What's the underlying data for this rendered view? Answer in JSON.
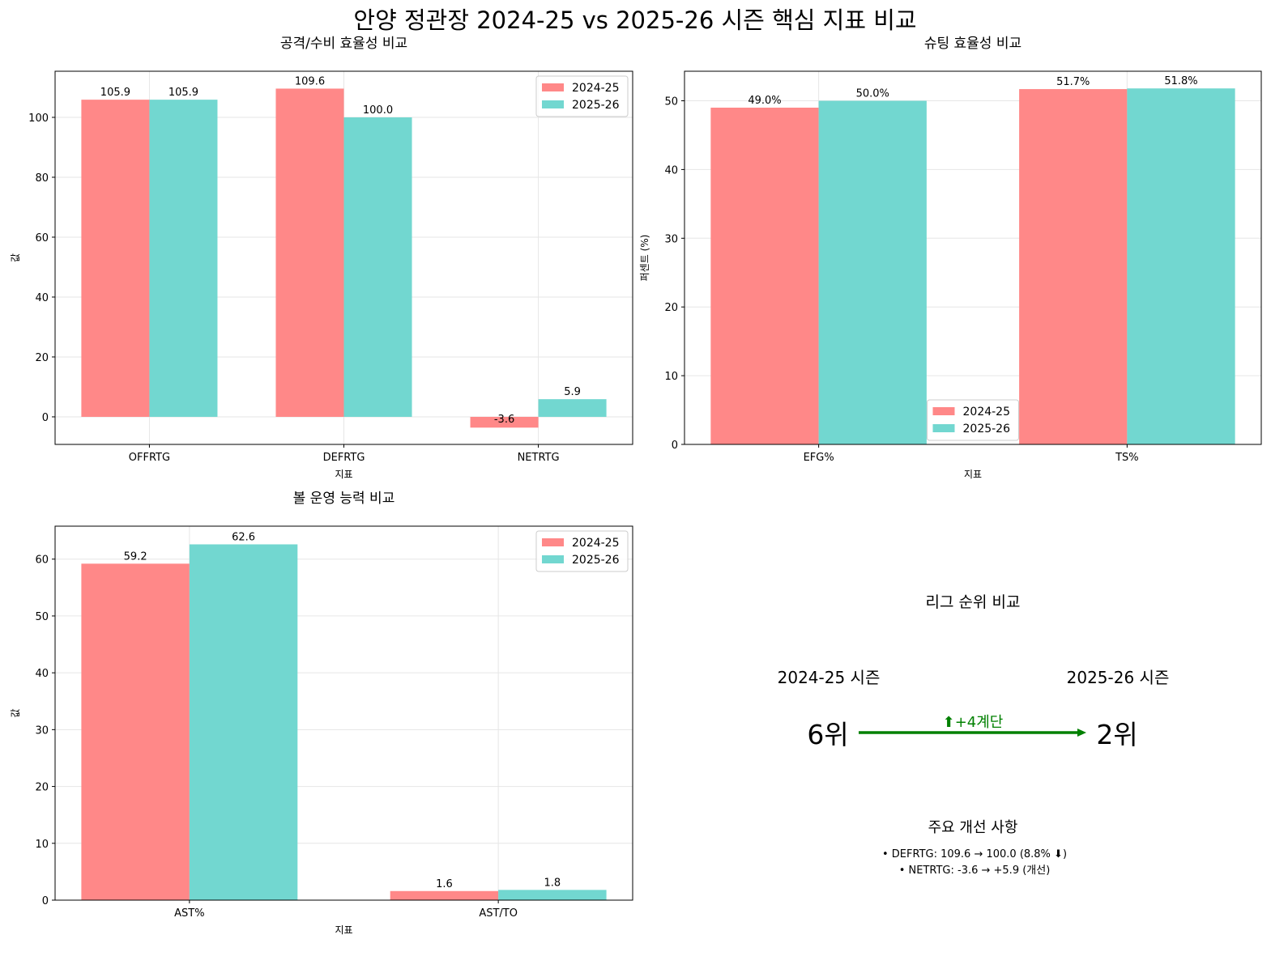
{
  "title": "안양 정관장 2024-25 vs 2025-26 시즌 핵심 지표 비교",
  "colors": {
    "s2024": "#ff8888",
    "s2025": "#72d7d0",
    "arrow": "#008000"
  },
  "chart_data": [
    {
      "type": "bar",
      "title": "공격/수비 효율성 비교",
      "xlabel": "지표",
      "ylabel": "값",
      "categories": [
        "OFFRTG",
        "DEFRTG",
        "NETRTG"
      ],
      "series": [
        {
          "name": "2024-25",
          "values": [
            105.9,
            109.6,
            -3.6
          ],
          "labels": [
            "105.9",
            "109.6",
            "-3.6"
          ]
        },
        {
          "name": "2025-26",
          "values": [
            105.9,
            100.0,
            5.9
          ],
          "labels": [
            "105.9",
            "100.0",
            "5.9"
          ]
        }
      ],
      "ylim": [
        -9.2,
        115.4
      ],
      "yticks": [
        0,
        20,
        40,
        60,
        80,
        100
      ],
      "grid": true,
      "legend": "top-right"
    },
    {
      "type": "bar",
      "title": "슈팅 효율성 비교",
      "xlabel": "지표",
      "ylabel": "퍼센트 (%)",
      "categories": [
        "EFG%",
        "TS%"
      ],
      "series": [
        {
          "name": "2024-25",
          "values": [
            49.0,
            51.7
          ],
          "labels": [
            "49.0%",
            "51.7%"
          ]
        },
        {
          "name": "2025-26",
          "values": [
            50.0,
            51.8
          ],
          "labels": [
            "50.0%",
            "51.8%"
          ]
        }
      ],
      "ylim": [
        0,
        54.3
      ],
      "yticks": [
        0,
        10,
        20,
        30,
        40,
        50
      ],
      "grid": true,
      "legend": "lower-center"
    },
    {
      "type": "bar",
      "title": "볼 운영 능력 비교",
      "xlabel": "지표",
      "ylabel": "값",
      "categories": [
        "AST%",
        "AST/TO"
      ],
      "series": [
        {
          "name": "2024-25",
          "values": [
            59.2,
            1.6
          ],
          "labels": [
            "59.2",
            "1.6"
          ]
        },
        {
          "name": "2025-26",
          "values": [
            62.6,
            1.8
          ],
          "labels": [
            "62.6",
            "1.8"
          ]
        }
      ],
      "ylim": [
        0,
        65.8
      ],
      "yticks": [
        0,
        10,
        20,
        30,
        40,
        50,
        60
      ],
      "grid": true,
      "legend": "top-right"
    }
  ],
  "rank": {
    "title": "리그 순위 비교",
    "left_season": "2024-25 시즌",
    "right_season": "2025-26 시즌",
    "left_rank": "6위",
    "right_rank": "2위",
    "change": "⬆+4계단",
    "improve_title": "주요 개선 사항",
    "items": [
      "• DEFRTG: 109.6 → 100.0 (8.8% ⬇)",
      "• NETRTG: -3.6 → +5.9 (개선)"
    ]
  }
}
